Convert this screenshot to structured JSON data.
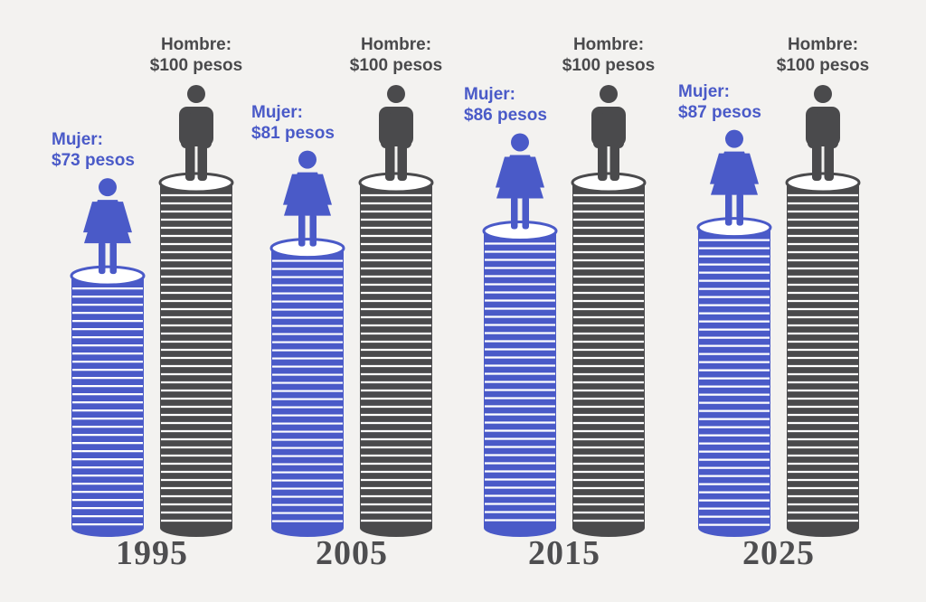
{
  "colors": {
    "woman": "#4a5ac8",
    "man": "#4a4a4c",
    "year": "#4e4e50",
    "background": "#f3f2f0"
  },
  "icons": {
    "woman": "woman-icon",
    "man": "man-icon"
  },
  "chart_data": {
    "type": "bar",
    "categories": [
      "1995",
      "2005",
      "2015",
      "2025"
    ],
    "series": [
      {
        "name": "Mujer",
        "values": [
          73,
          81,
          86,
          87
        ]
      },
      {
        "name": "Hombre",
        "values": [
          100,
          100,
          100,
          100
        ]
      }
    ],
    "unit": "pesos",
    "groups": [
      {
        "year": "1995",
        "woman_title": "Mujer:",
        "woman_value": "$73 pesos",
        "man_title": "Hombre:",
        "man_value": "$100 pesos"
      },
      {
        "year": "2005",
        "woman_title": "Mujer:",
        "woman_value": "$81 pesos",
        "man_title": "Hombre:",
        "man_value": "$100 pesos"
      },
      {
        "year": "2015",
        "woman_title": "Mujer:",
        "woman_value": "$86 pesos",
        "man_title": "Hombre:",
        "man_value": "$100 pesos"
      },
      {
        "year": "2025",
        "woman_title": "Mujer:",
        "woman_value": "$87 pesos",
        "man_title": "Hombre:",
        "man_value": "$100 pesos"
      }
    ]
  }
}
